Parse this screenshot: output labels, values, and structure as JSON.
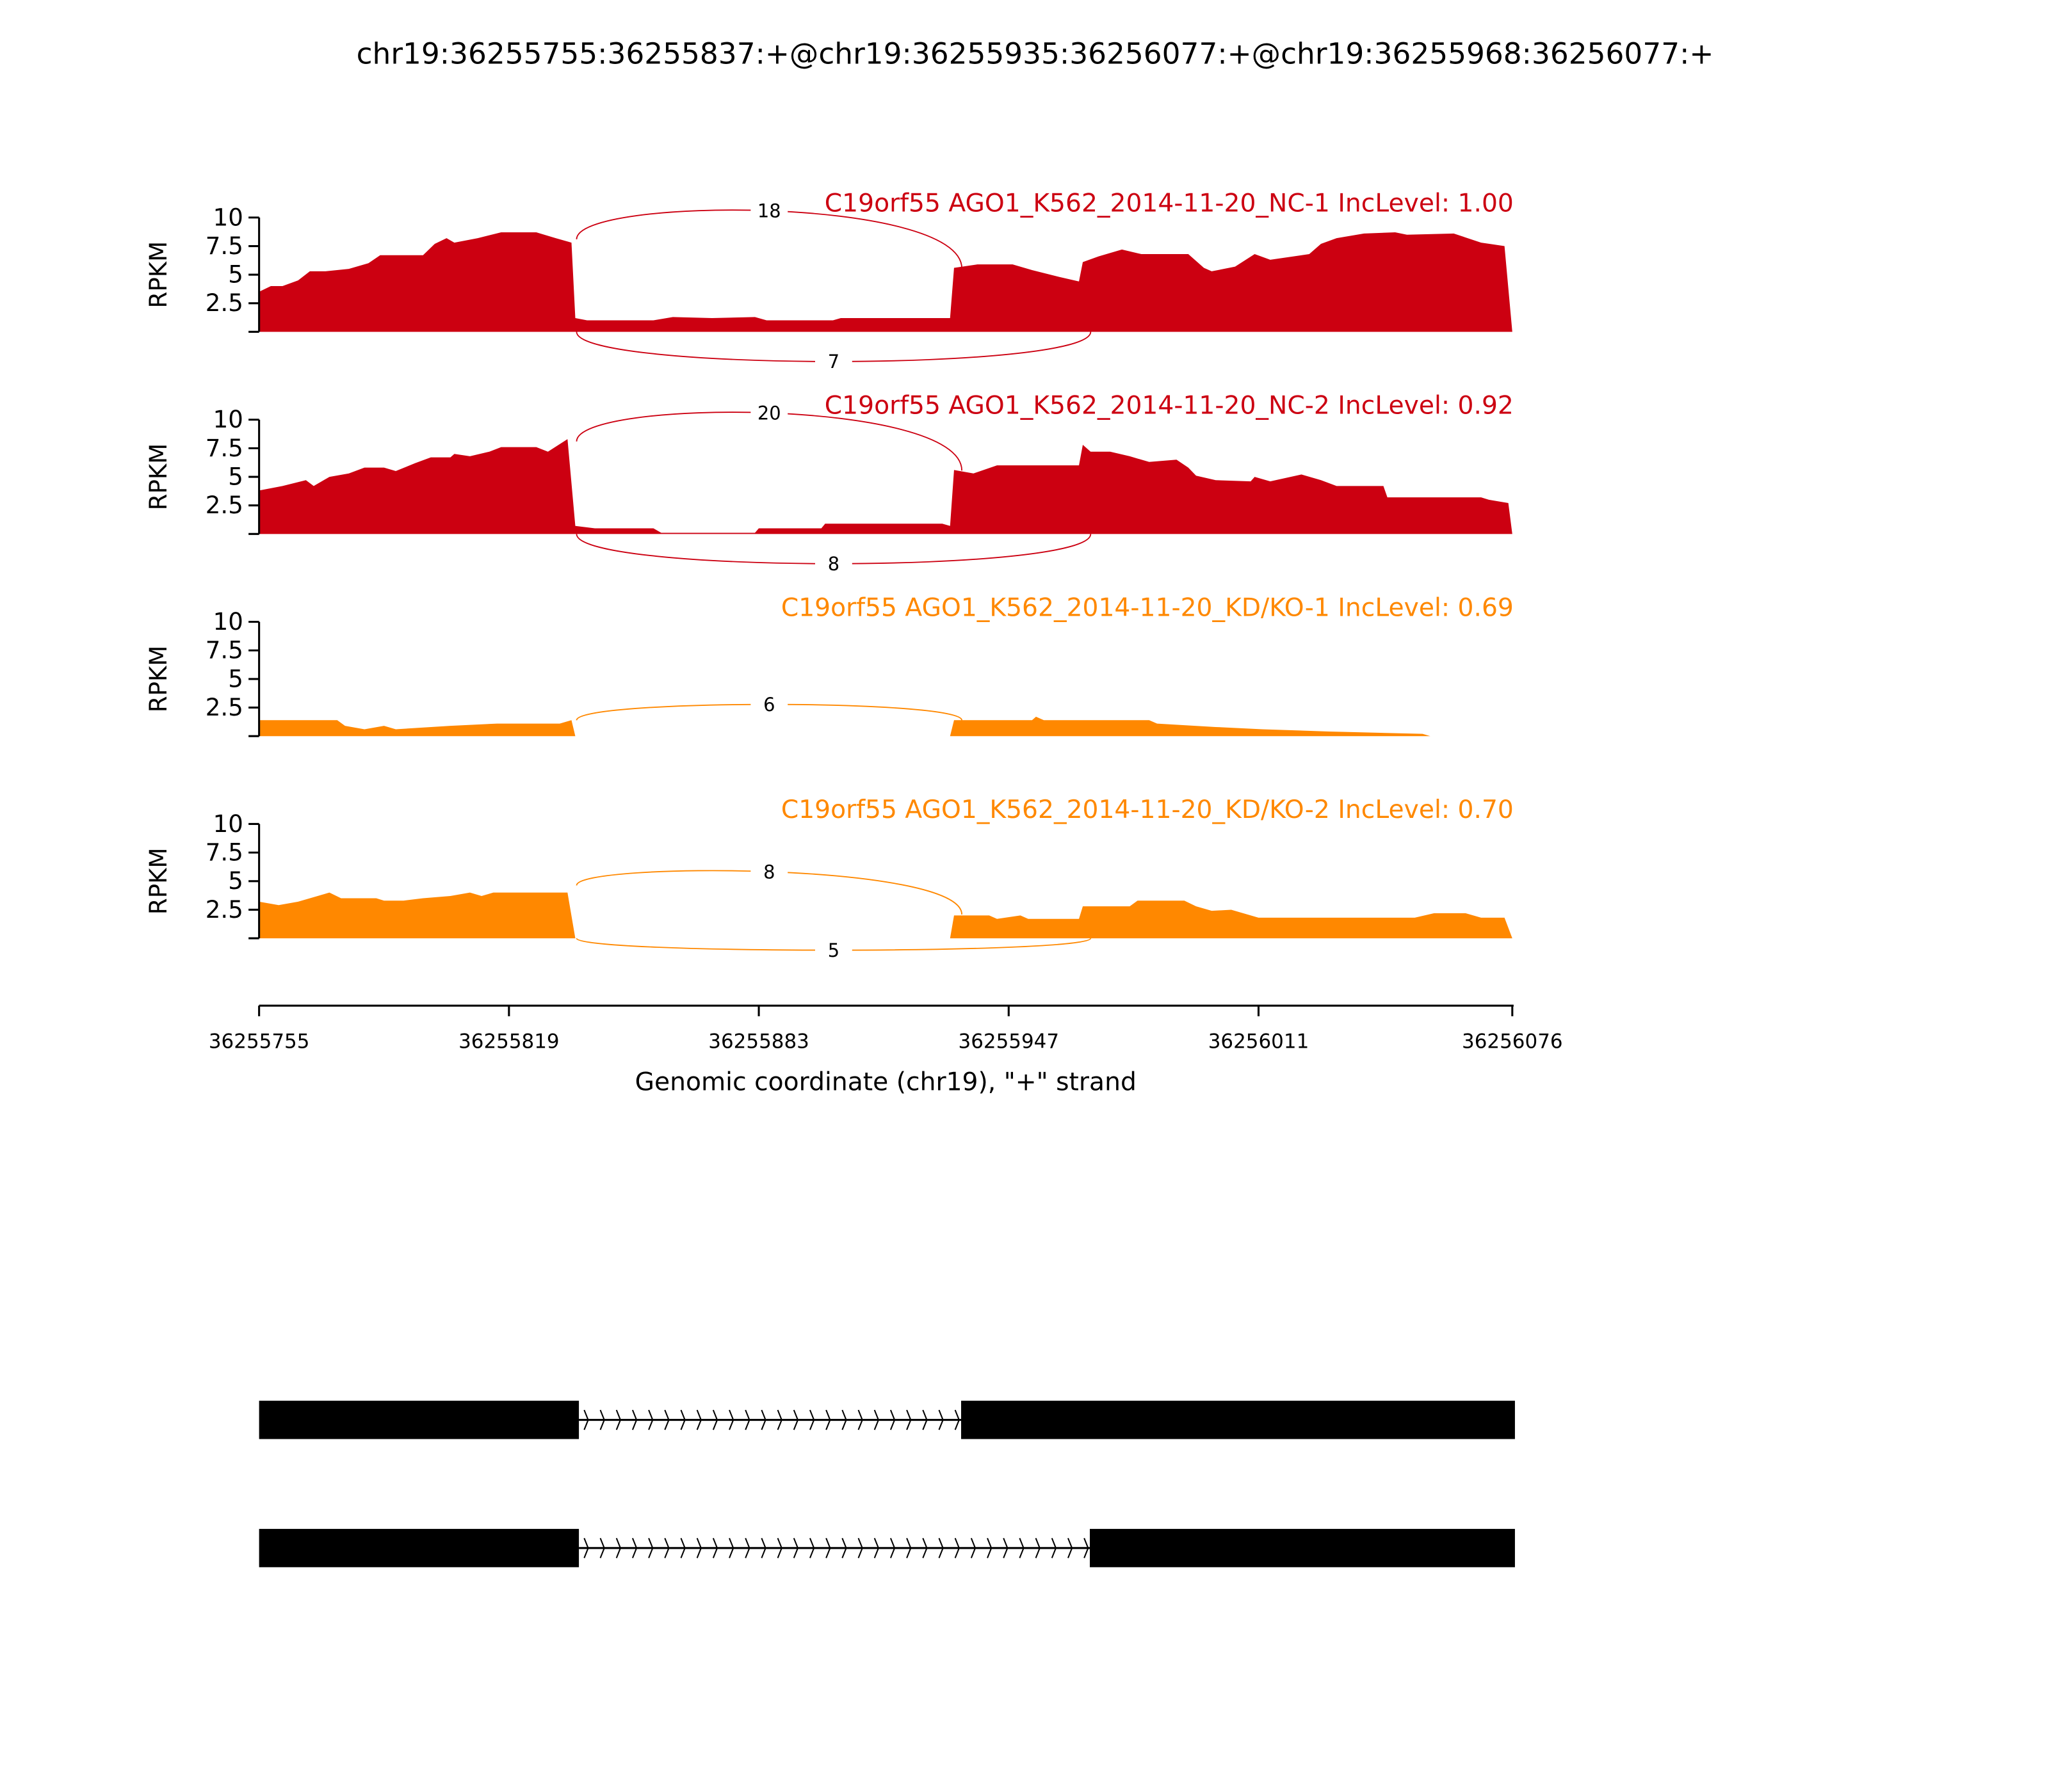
{
  "chart_data": {
    "type": "area",
    "title": "chr19:36255755:36255837:+@chr19:36255935:36256077:+@chr19:36255968:36256077:+",
    "xlabel": "Genomic coordinate (chr19), \"+\" strand",
    "ylabel": "RPKM",
    "xlim": [
      36255755,
      36256076
    ],
    "ylim": [
      0,
      10
    ],
    "x_ticks": [
      "36255755",
      "36255819",
      "36255883",
      "36255947",
      "36256011",
      "36256076"
    ],
    "x_tick_values": [
      36255755,
      36255819,
      36255883,
      36255947,
      36256011,
      36256076
    ],
    "y_ticks": [
      "2.5",
      "5",
      "7.5",
      "10"
    ],
    "y_tick_values": [
      2.5,
      5,
      7.5,
      10
    ],
    "coverage_start": 36255755,
    "tracks": [
      {
        "label": "C19orf55 AGO1_K562_2014-11-20_NC-1 IncLevel: 1.00",
        "color": "#cc0011",
        "coverage_offsets": [
          0,
          3,
          6,
          10,
          13,
          17,
          23,
          28,
          31,
          42,
          45,
          48,
          50,
          56,
          62,
          71,
          76,
          80,
          81,
          84,
          101,
          106,
          116,
          127,
          130,
          147,
          149,
          177,
          178,
          184,
          193,
          198,
          205,
          210,
          211,
          215,
          221,
          226,
          238,
          242,
          244,
          250,
          255,
          259,
          269,
          272,
          276,
          283,
          291,
          294,
          306,
          313,
          319,
          321
        ],
        "coverage_values": [
          3.5,
          4,
          4,
          4.5,
          5.3,
          5.3,
          5.5,
          6,
          6.7,
          6.7,
          7.7,
          8.2,
          7.8,
          8.2,
          8.7,
          8.7,
          8.2,
          7.8,
          1.2,
          1,
          1,
          1.3,
          1.2,
          1.3,
          1,
          1,
          1.2,
          1.2,
          5.6,
          5.9,
          5.9,
          5.4,
          4.8,
          4.4,
          6.1,
          6.6,
          7.2,
          6.8,
          6.8,
          5.6,
          5.3,
          5.7,
          6.8,
          6.3,
          6.8,
          7.7,
          8.2,
          8.6,
          8.7,
          8.5,
          8.6,
          7.8,
          7.5,
          0
        ],
        "junctions": [
          {
            "from": 36255837,
            "to": 36255935,
            "count": "18",
            "side": "above"
          },
          {
            "from": 36255837,
            "to": 36255968,
            "count": "7",
            "side": "below"
          }
        ]
      },
      {
        "label": "C19orf55 AGO1_K562_2014-11-20_NC-2 IncLevel: 0.92",
        "color": "#cc0011",
        "coverage_offsets": [
          0,
          6,
          12,
          14,
          18,
          23,
          27,
          32,
          35,
          40,
          44,
          49,
          50,
          54,
          59,
          62,
          71,
          74,
          79,
          81,
          86,
          101,
          103,
          127,
          128,
          144,
          145,
          175,
          177,
          178,
          183,
          189,
          210,
          211,
          213,
          218,
          223,
          228,
          235,
          238,
          240,
          245,
          254,
          255,
          259,
          267,
          272,
          276,
          288,
          289,
          313,
          315,
          320,
          321
        ],
        "coverage_values": [
          3.8,
          4.2,
          4.7,
          4.2,
          5,
          5.3,
          5.8,
          5.8,
          5.5,
          6.2,
          6.7,
          6.7,
          7,
          6.8,
          7.2,
          7.6,
          7.6,
          7.2,
          8.3,
          0.7,
          0.5,
          0.5,
          0.1,
          0.1,
          0.5,
          0.5,
          0.9,
          0.9,
          0.7,
          5.6,
          5.3,
          6,
          6,
          7.8,
          7.2,
          7.2,
          6.8,
          6.3,
          6.5,
          5.8,
          5.1,
          4.7,
          4.6,
          5,
          4.6,
          5.2,
          4.7,
          4.2,
          4.2,
          3.2,
          3.2,
          3,
          2.7,
          0
        ],
        "junctions": [
          {
            "from": 36255837,
            "to": 36255935,
            "count": "20",
            "side": "above"
          },
          {
            "from": 36255837,
            "to": 36255968,
            "count": "8",
            "side": "below"
          }
        ]
      },
      {
        "label": "C19orf55 AGO1_K562_2014-11-20_KD/KO-1 IncLevel: 0.69",
        "color": "#ff8800",
        "coverage_offsets": [
          0,
          20,
          22,
          27,
          32,
          35,
          49,
          61,
          77,
          80,
          81,
          177,
          178,
          198,
          199,
          201,
          228,
          230,
          245,
          257,
          274,
          298,
          300,
          321
        ],
        "coverage_values": [
          1.4,
          1.4,
          0.9,
          0.6,
          0.9,
          0.6,
          0.9,
          1.1,
          1.1,
          1.4,
          0,
          0,
          1.4,
          1.4,
          1.7,
          1.4,
          1.4,
          1.1,
          0.8,
          0.6,
          0.4,
          0.2,
          0,
          0
        ],
        "junctions": [
          {
            "from": 36255837,
            "to": 36255935,
            "count": "6",
            "side": "above"
          }
        ]
      },
      {
        "label": "C19orf55 AGO1_K562_2014-11-20_KD/KO-2 IncLevel: 0.70",
        "color": "#ff8800",
        "coverage_offsets": [
          0,
          5,
          10,
          15,
          18,
          21,
          30,
          32,
          37,
          42,
          49,
          54,
          57,
          60,
          79,
          81,
          177,
          178,
          187,
          189,
          195,
          197,
          210,
          211,
          223,
          225,
          237,
          240,
          244,
          249,
          256,
          296,
          301,
          309,
          313,
          319,
          321
        ],
        "coverage_values": [
          3.2,
          2.9,
          3.2,
          3.7,
          4,
          3.5,
          3.5,
          3.3,
          3.3,
          3.5,
          3.7,
          4,
          3.7,
          4,
          4,
          0,
          0,
          2,
          2,
          1.7,
          2,
          1.7,
          1.7,
          2.8,
          2.8,
          3.3,
          3.3,
          2.8,
          2.4,
          2.5,
          1.8,
          1.8,
          2.2,
          2.2,
          1.8,
          1.8,
          0
        ],
        "junctions": [
          {
            "from": 36255837,
            "to": 36255935,
            "count": "8",
            "side": "above"
          },
          {
            "from": 36255837,
            "to": 36255968,
            "count": "5",
            "side": "below"
          }
        ]
      }
    ],
    "isoforms": [
      {
        "exons": [
          [
            36255755,
            36255837
          ],
          [
            36255935,
            36256077
          ]
        ]
      },
      {
        "exons": [
          [
            36255755,
            36255837
          ],
          [
            36255968,
            36256077
          ]
        ]
      }
    ]
  }
}
